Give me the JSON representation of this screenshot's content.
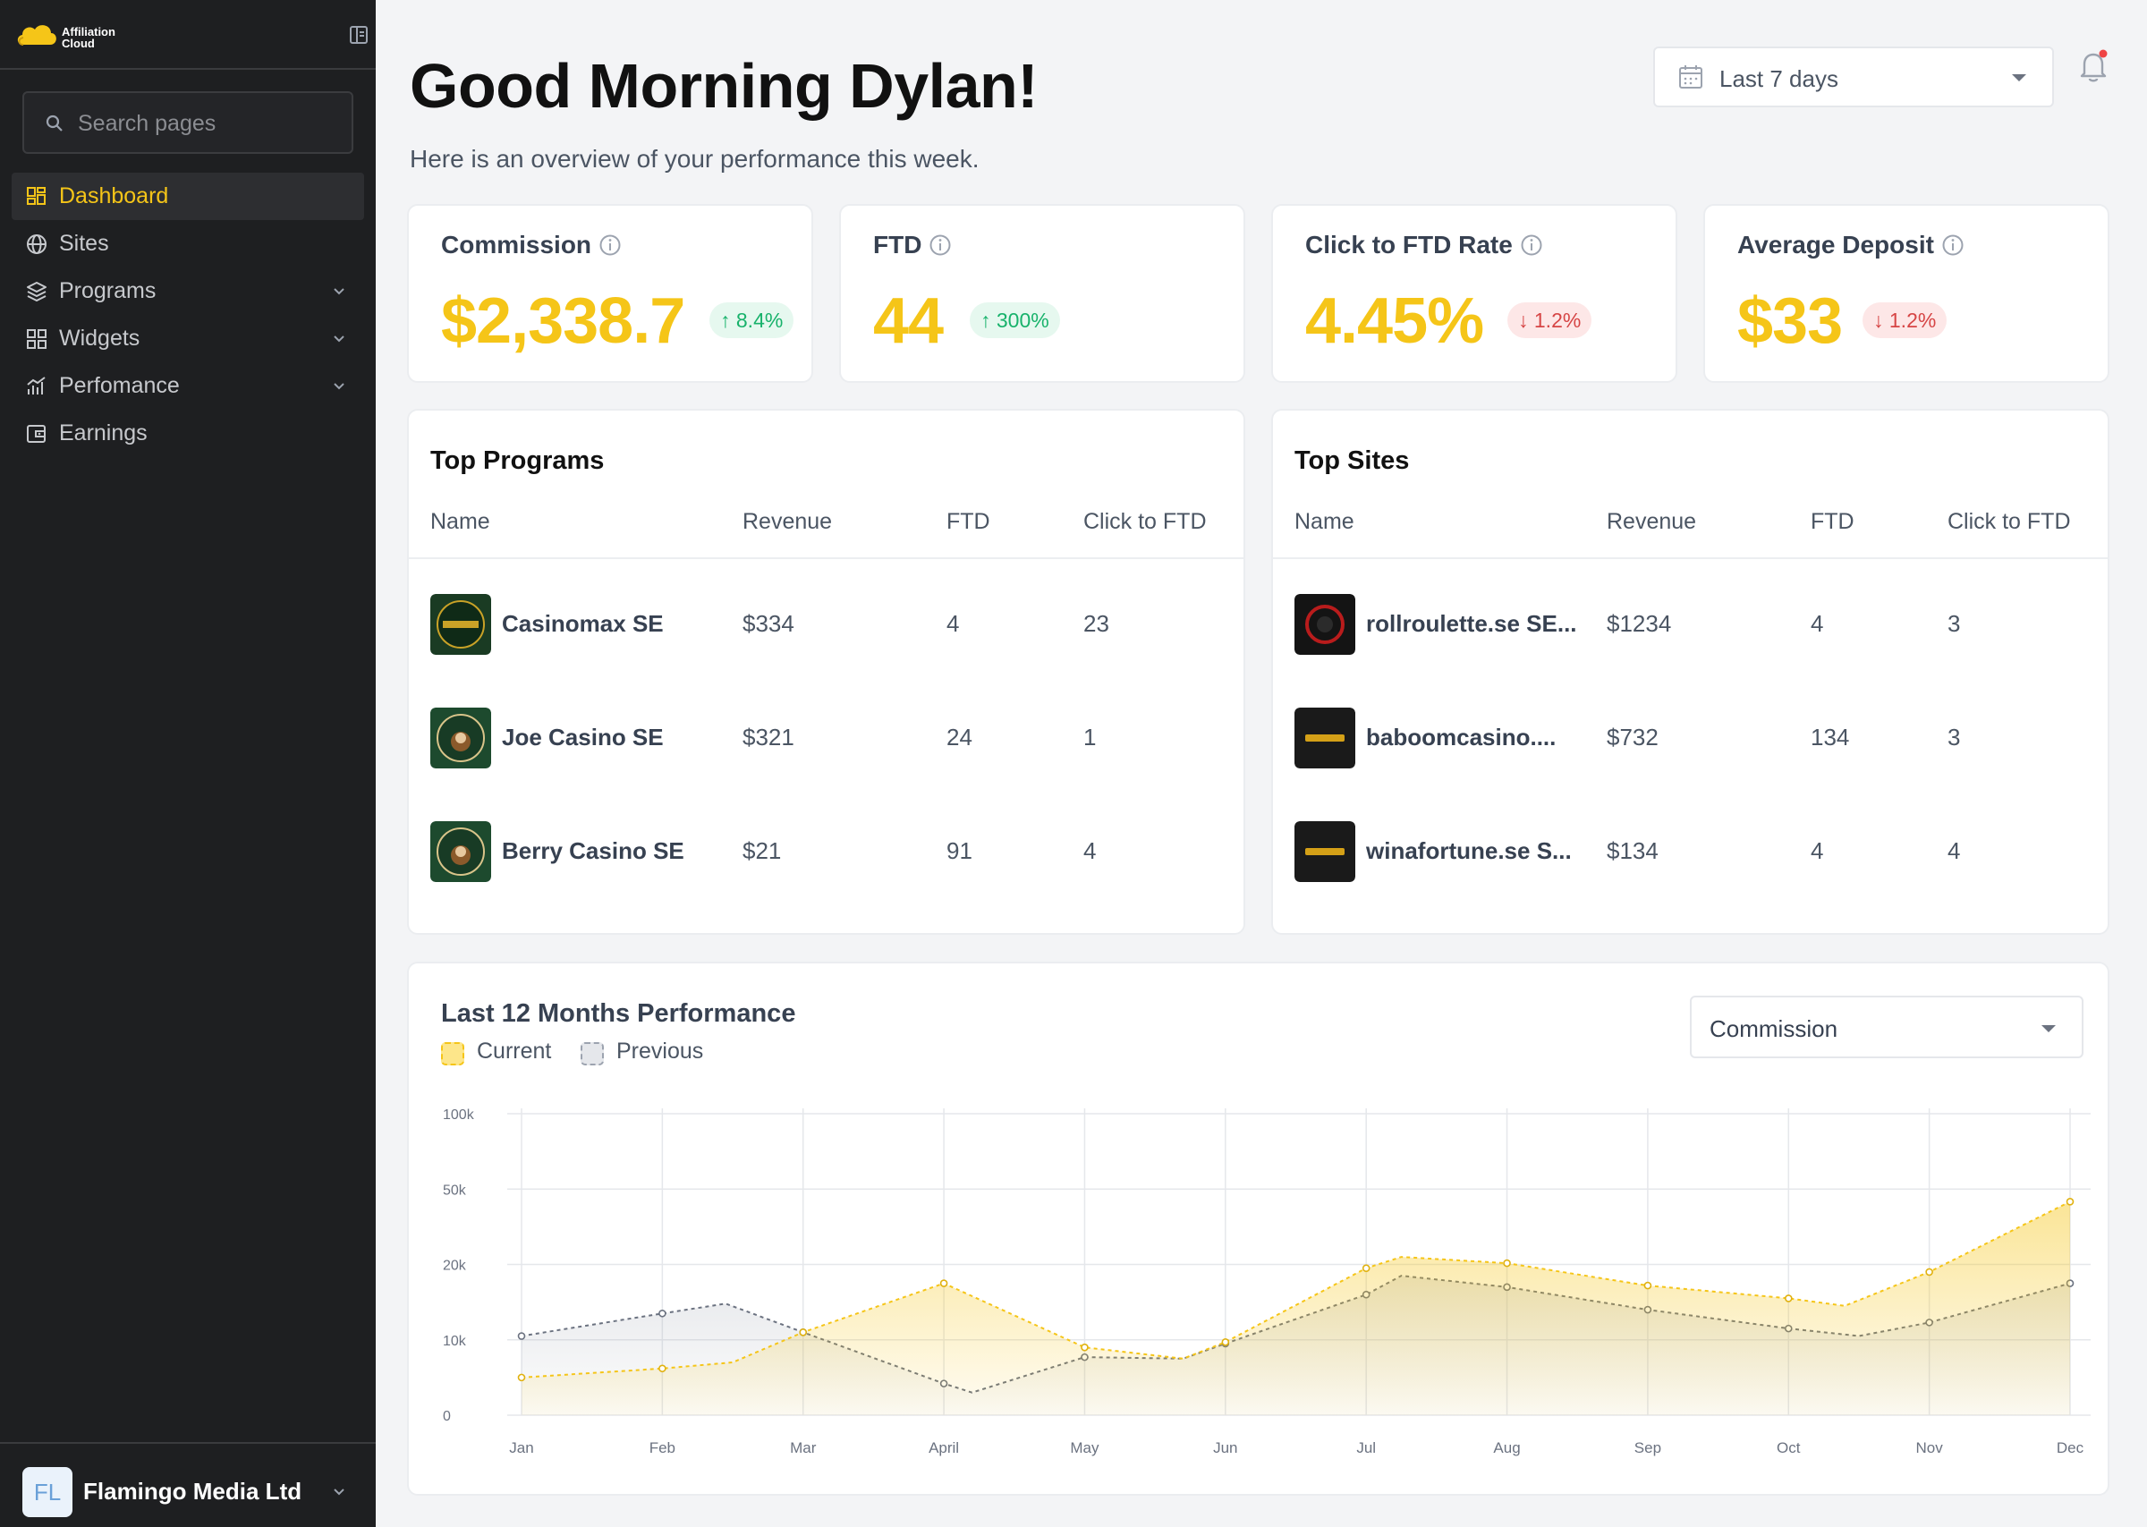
{
  "app": {
    "brand_line1": "Affiliation",
    "brand_line2": "Cloud",
    "accent_color": "#f5c518"
  },
  "sidebar": {
    "search_placeholder": "Search pages",
    "items": [
      {
        "label": "Dashboard",
        "icon": "grid-icon",
        "active": true,
        "has_chevron": false
      },
      {
        "label": "Sites",
        "icon": "globe-icon",
        "active": false,
        "has_chevron": false
      },
      {
        "label": "Programs",
        "icon": "layers-icon",
        "active": false,
        "has_chevron": true
      },
      {
        "label": "Widgets",
        "icon": "widgets-icon",
        "active": false,
        "has_chevron": true
      },
      {
        "label": "Perfomance",
        "icon": "bar-chart-icon",
        "active": false,
        "has_chevron": true
      },
      {
        "label": "Earnings",
        "icon": "wallet-icon",
        "active": false,
        "has_chevron": false
      }
    ],
    "account": {
      "initials": "FL",
      "name": "Flamingo Media Ltd"
    }
  },
  "header": {
    "greeting": "Good Morning Dylan!",
    "subtitle": "Here is an overview of your performance this week.",
    "date_range": "Last 7 days"
  },
  "kpis": [
    {
      "title": "Commission",
      "value": "$2,338.7",
      "change": "8.4%",
      "direction": "up"
    },
    {
      "title": "FTD",
      "value": "44",
      "change": "300%",
      "direction": "up"
    },
    {
      "title": "Click to FTD  Rate",
      "value": "4.45%",
      "change": "1.2%",
      "direction": "down"
    },
    {
      "title": "Average Deposit",
      "value": "$33",
      "change": "1.2%",
      "direction": "down"
    }
  ],
  "top_programs": {
    "title": "Top Programs",
    "columns": [
      "Name",
      "Revenue",
      "FTD",
      "Click to FTD"
    ],
    "rows": [
      {
        "name": "Casinomax SE",
        "revenue": "$334",
        "ftd": "4",
        "click_to_ftd": "23"
      },
      {
        "name": "Joe Casino SE",
        "revenue": "$321",
        "ftd": "24",
        "click_to_ftd": "1"
      },
      {
        "name": "Berry Casino SE",
        "revenue": "$21",
        "ftd": "91",
        "click_to_ftd": "4"
      }
    ]
  },
  "top_sites": {
    "title": "Top Sites",
    "columns": [
      "Name",
      "Revenue",
      "FTD",
      "Click to FTD"
    ],
    "rows": [
      {
        "name": "rollroulette.se SE...",
        "revenue": "$1234",
        "ftd": "4",
        "click_to_ftd": "3"
      },
      {
        "name": "baboomcasino....",
        "revenue": "$732",
        "ftd": "134",
        "click_to_ftd": "3"
      },
      {
        "name": "winafortune.se S...",
        "revenue": "$134",
        "ftd": "4",
        "click_to_ftd": "4"
      }
    ]
  },
  "performance": {
    "title": "Last  12 Months Performance",
    "metric": "Commission",
    "legend": [
      {
        "label": "Current",
        "color": "#f5c518"
      },
      {
        "label": "Previous",
        "color": "#9ca3af"
      }
    ]
  },
  "chart_data": {
    "type": "area",
    "title": "Last  12 Months Performance",
    "x": [
      "Jan",
      "Feb",
      "Mar",
      "April",
      "May",
      "Jun",
      "Jul",
      "Aug",
      "Sep",
      "Oct",
      "Nov",
      "Dec"
    ],
    "y_ticks": [
      "0",
      "10k",
      "20k",
      "50k",
      "100k"
    ],
    "y_tick_values": [
      0,
      10000,
      20000,
      50000,
      100000
    ],
    "grid": true,
    "series": [
      {
        "name": "Current",
        "color": "#f5c518",
        "x": [
          0,
          1,
          1.5,
          2,
          3,
          4,
          4.7,
          5,
          6,
          6.25,
          7,
          8,
          9,
          9.4,
          10,
          11
        ],
        "values": [
          5000,
          6200,
          7000,
          11000,
          17500,
          9000,
          7500,
          9700,
          19500,
          23000,
          20500,
          17200,
          15500,
          14500,
          19000,
          45000
        ]
      },
      {
        "name": "Previous",
        "color": "#6b7280",
        "x": [
          0,
          1,
          1.45,
          2,
          3,
          3.2,
          4,
          4.7,
          5,
          6,
          6.25,
          7,
          8,
          9,
          9.5,
          10,
          11
        ],
        "values": [
          10500,
          13500,
          14800,
          11000,
          4200,
          3000,
          7700,
          7500,
          9500,
          16000,
          18500,
          17000,
          14000,
          11500,
          10500,
          12300,
          17500
        ]
      }
    ]
  }
}
